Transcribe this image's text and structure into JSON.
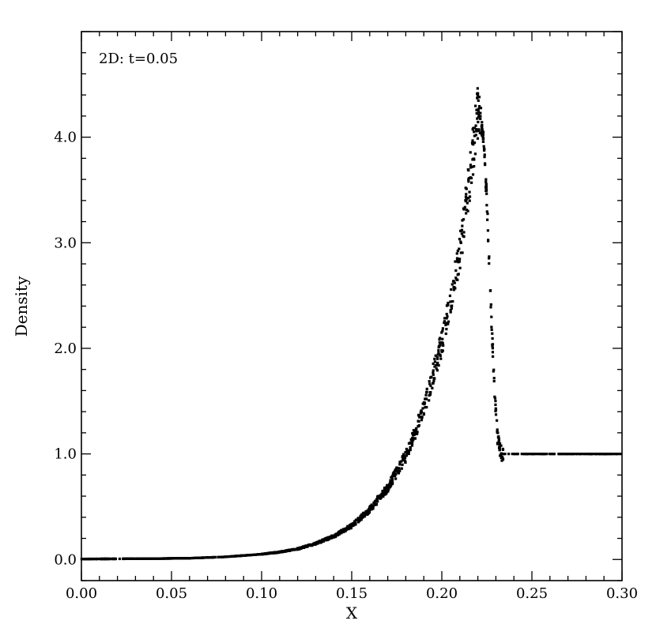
{
  "chart_data": {
    "type": "scatter",
    "title": "",
    "annotation": "2D: t=0.05",
    "xlabel": "X",
    "ylabel": "Density",
    "xlim": [
      0.0,
      0.3
    ],
    "ylim": [
      -0.2,
      5.0
    ],
    "x_ticks": [
      "0.00",
      "0.05",
      "0.10",
      "0.15",
      "0.20",
      "0.25",
      "0.30"
    ],
    "y_ticks": [
      "0.0",
      "1.0",
      "2.0",
      "3.0",
      "4.0"
    ],
    "grid": false,
    "legend": "none",
    "marker_color": "#000000",
    "series": [
      {
        "curve": [
          [
            0.0,
            0.005
          ],
          [
            0.02,
            0.006
          ],
          [
            0.04,
            0.008
          ],
          [
            0.06,
            0.012
          ],
          [
            0.08,
            0.025
          ],
          [
            0.1,
            0.05
          ],
          [
            0.11,
            0.07
          ],
          [
            0.12,
            0.1
          ],
          [
            0.13,
            0.15
          ],
          [
            0.14,
            0.22
          ],
          [
            0.15,
            0.32
          ],
          [
            0.16,
            0.47
          ],
          [
            0.17,
            0.68
          ],
          [
            0.18,
            0.98
          ],
          [
            0.19,
            1.42
          ],
          [
            0.2,
            2.05
          ],
          [
            0.21,
            2.9
          ],
          [
            0.215,
            3.55
          ],
          [
            0.22,
            4.25
          ],
          [
            0.223,
            4.02
          ],
          [
            0.225,
            3.4
          ],
          [
            0.227,
            2.5
          ],
          [
            0.229,
            1.7
          ],
          [
            0.231,
            1.15
          ],
          [
            0.233,
            1.0
          ],
          [
            0.24,
            1.0
          ],
          [
            0.3,
            1.0
          ]
        ]
      }
    ]
  }
}
